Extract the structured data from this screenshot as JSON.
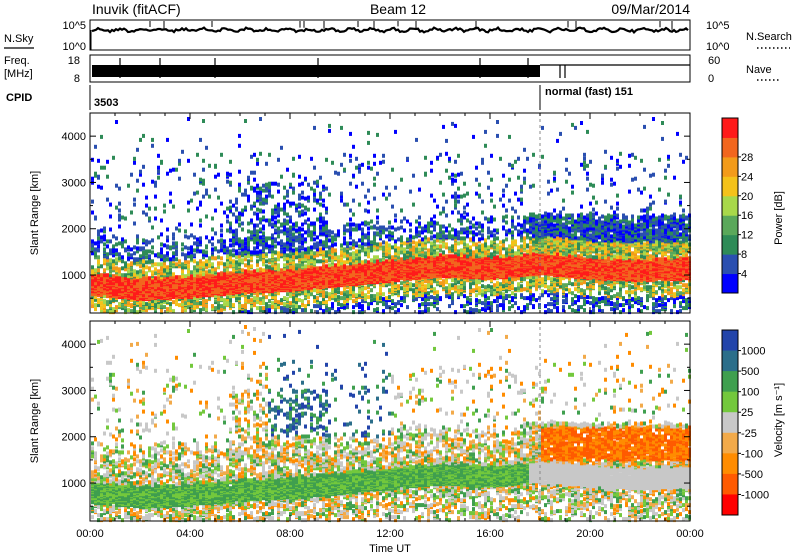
{
  "header": {
    "station": "Inuvik (fitACF)",
    "beam": "Beam 12",
    "date": "09/Mar/2014"
  },
  "strip": {
    "nsky_label": "N.Sky",
    "nsky_top_tick": "10^5",
    "nsky_bottom_tick": "10^0",
    "nsearch_label": "N.Search",
    "nsearch_top_tick": "10^5",
    "nsearch_bottom_tick": "10^0",
    "freq_label": "Freq.",
    "freq_unit": "[MHz]",
    "freq_top_tick": "18",
    "freq_bottom_tick": "8",
    "nave_label": "Nave",
    "nave_top_tick": "60",
    "nave_bottom_tick": "0",
    "cpid_label": "CPID",
    "cpid_values": [
      "3503",
      "normal (fast) 151"
    ]
  },
  "colors": {
    "power": [
      "#0000ff",
      "#2a4fb0",
      "#2e8b57",
      "#5aa85a",
      "#a8d84a",
      "#f4c21a",
      "#f39b1a",
      "#f2661e",
      "#ff1a1a"
    ],
    "velocity": [
      "#ff0000",
      "#ff5a00",
      "#ff8c00",
      "#f2aa4a",
      "#c8c8c8",
      "#73c83c",
      "#3f9f4f",
      "#2b6e8a",
      "#2244aa"
    ],
    "ground_scatter": "#c8c8c8"
  },
  "chart_data": [
    {
      "type": "heatmap",
      "ylabel": "Slant Range [km]",
      "xlabel": "",
      "xlim": [
        0,
        24
      ],
      "ylim": [
        180,
        4500
      ],
      "x_ticks": [
        "00:00",
        "04:00",
        "08:00",
        "12:00",
        "16:00",
        "20:00",
        "00:00"
      ],
      "y_ticks": [
        1000,
        2000,
        3000,
        4000
      ],
      "colorbar": {
        "label": "Power [dB]",
        "ticks": [
          "4",
          "8",
          "12",
          "16",
          "20",
          "24",
          "28"
        ]
      },
      "series": [
        {
          "band": "main echo (approx. mean range by hour)",
          "x": [
            0,
            2,
            4,
            6,
            8,
            10,
            12,
            14,
            16,
            18,
            20,
            22,
            24
          ],
          "y": [
            800,
            700,
            750,
            850,
            900,
            1000,
            1100,
            1200,
            1150,
            1250,
            1150,
            1100,
            1150
          ]
        }
      ]
    },
    {
      "type": "heatmap",
      "ylabel": "Slant Range [km]",
      "xlabel": "Time UT",
      "xlim": [
        0,
        24
      ],
      "ylim": [
        180,
        4500
      ],
      "x_ticks": [
        "00:00",
        "04:00",
        "08:00",
        "12:00",
        "16:00",
        "20:00",
        "00:00"
      ],
      "y_ticks": [
        1000,
        2000,
        3000,
        4000
      ],
      "colorbar": {
        "label": "Velocity [m s⁻¹]",
        "ticks": [
          "1000",
          "500",
          "100",
          "25",
          "-25",
          "-100",
          "-500",
          "-1000"
        ]
      },
      "series": [
        {
          "band": "main echo (approx. mean range by hour)",
          "x": [
            0,
            2,
            4,
            6,
            8,
            10,
            12,
            14,
            16,
            18,
            20,
            22,
            24
          ],
          "y": [
            800,
            700,
            750,
            850,
            900,
            1000,
            1100,
            1200,
            1150,
            1250,
            1150,
            1100,
            1150
          ]
        }
      ]
    }
  ]
}
